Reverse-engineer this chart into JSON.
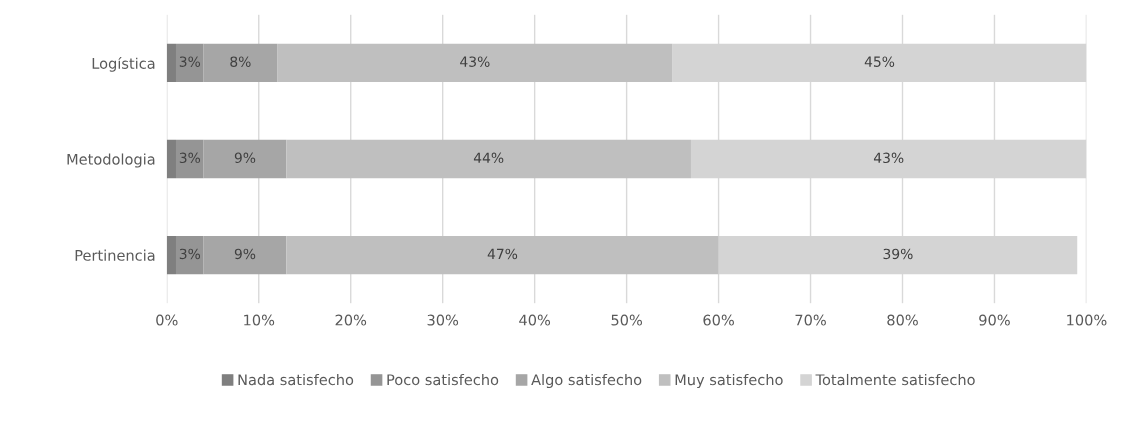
{
  "chart_data": {
    "type": "bar",
    "orientation": "horizontal",
    "stacked": true,
    "categories": [
      "Logística",
      "Metodologia",
      "Pertinencia"
    ],
    "series": [
      {
        "name": "Nada satisfecho",
        "color": "#7f7f7f",
        "values": [
          1,
          1,
          1
        ],
        "value_labels": [
          null,
          null,
          null
        ]
      },
      {
        "name": "Poco satisfecho",
        "color": "#959595",
        "values": [
          3,
          3,
          3
        ],
        "value_labels": [
          "3%",
          "3%",
          "3%"
        ]
      },
      {
        "name": "Algo satisfecho",
        "color": "#a6a6a6",
        "values": [
          8,
          9,
          9
        ],
        "value_labels": [
          "8%",
          "9%",
          "9%"
        ]
      },
      {
        "name": "Muy satisfecho",
        "color": "#bfbfbf",
        "values": [
          43,
          44,
          47
        ],
        "value_labels": [
          "43%",
          "44%",
          "47%"
        ]
      },
      {
        "name": "Totalmente satisfecho",
        "color": "#d4d4d4",
        "values": [
          45,
          43,
          39
        ],
        "value_labels": [
          "45%",
          "43%",
          "39%"
        ]
      }
    ],
    "xlim": [
      0,
      100
    ],
    "xticks": [
      {
        "value": 0,
        "label": "0%"
      },
      {
        "value": 10,
        "label": "10%"
      },
      {
        "value": 20,
        "label": "20%"
      },
      {
        "value": 30,
        "label": "30%"
      },
      {
        "value": 40,
        "label": "40%"
      },
      {
        "value": 50,
        "label": "50%"
      },
      {
        "value": 60,
        "label": "60%"
      },
      {
        "value": 70,
        "label": "70%"
      },
      {
        "value": 80,
        "label": "80%"
      },
      {
        "value": 90,
        "label": "90%"
      },
      {
        "value": 100,
        "label": "100%"
      }
    ],
    "grid": "x",
    "legend": "bottom"
  }
}
